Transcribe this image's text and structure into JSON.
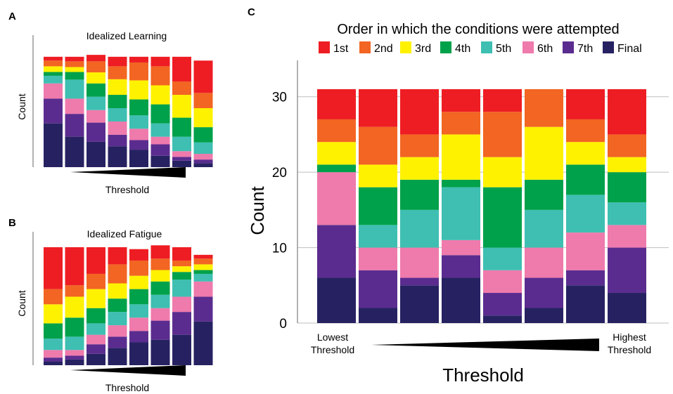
{
  "colors": {
    "1st": "#ee1d23",
    "2nd": "#f26522",
    "3rd": "#fff200",
    "4th": "#00a14b",
    "5th": "#3ebfb2",
    "6th": "#ef7aac",
    "7th": "#5b2c8f",
    "Final": "#262262"
  },
  "panels": {
    "A": {
      "letter": "A",
      "title": "Idealized Learning",
      "ylabel": "Count",
      "xlabel": "Threshold"
    },
    "B": {
      "letter": "B",
      "title": "Idealized Fatigue",
      "ylabel": "Count",
      "xlabel": "Threshold"
    },
    "C": {
      "letter": "C",
      "title": "Order in which the conditions were attempted",
      "ylabel": "Count",
      "xlabel": "Threshold",
      "low_label_1": "Lowest",
      "low_label_2": "Threshold",
      "high_label_1": "Highest",
      "high_label_2": "Threshold"
    }
  },
  "chart_data": [
    {
      "panel": "A",
      "type": "bar",
      "stacked": true,
      "title": "Idealized Learning",
      "xlabel": "Threshold",
      "ylabel": "Count",
      "ylim": [
        0,
        31
      ],
      "categories": [
        "1",
        "2",
        "3",
        "4",
        "5",
        "6",
        "7",
        "8"
      ],
      "series": [
        {
          "name": "Final",
          "values": [
            11.5,
            8,
            6.7,
            5.5,
            4.6,
            3,
            1.7,
            1
          ]
        },
        {
          "name": "7th",
          "values": [
            6.5,
            6,
            5,
            3,
            2.5,
            3,
            1,
            1
          ]
        },
        {
          "name": "6th",
          "values": [
            4,
            4,
            3.3,
            3.5,
            3,
            2,
            1.5,
            1.5
          ]
        },
        {
          "name": "5th",
          "values": [
            2,
            5,
            3.5,
            3.5,
            3.5,
            3.5,
            3.8,
            3
          ]
        },
        {
          "name": "4th",
          "values": [
            1,
            2,
            3.5,
            3.5,
            4.2,
            5,
            5,
            4
          ]
        },
        {
          "name": "3rd",
          "values": [
            1.5,
            1.3,
            2.9,
            4.1,
            5,
            5,
            6,
            5
          ]
        },
        {
          "name": "2nd",
          "values": [
            1.5,
            1.5,
            2.9,
            3.4,
            4.7,
            5,
            3.5,
            4
          ]
        },
        {
          "name": "1st",
          "values": [
            1,
            1.2,
            1.7,
            2.5,
            1.5,
            2.5,
            6.5,
            8.5
          ]
        }
      ]
    },
    {
      "panel": "B",
      "type": "bar",
      "stacked": true,
      "title": "Idealized Fatigue",
      "xlabel": "Threshold",
      "ylabel": "Count",
      "ylim": [
        0,
        31
      ],
      "categories": [
        "1",
        "2",
        "3",
        "4",
        "5",
        "6",
        "7",
        "8"
      ],
      "series": [
        {
          "name": "Final",
          "values": [
            1,
            1.5,
            3,
            4.5,
            6,
            6.7,
            8,
            11.5
          ]
        },
        {
          "name": "7th",
          "values": [
            1,
            1,
            2.5,
            3,
            3,
            5,
            6,
            6.5
          ]
        },
        {
          "name": "6th",
          "values": [
            2,
            1.5,
            2.5,
            3,
            3.5,
            3.3,
            4,
            4
          ]
        },
        {
          "name": "5th",
          "values": [
            3,
            3.5,
            3,
            3.5,
            3.5,
            3.5,
            4.5,
            2
          ]
        },
        {
          "name": "4th",
          "values": [
            4,
            5,
            4,
            3.5,
            4,
            3.5,
            2,
            1
          ]
        },
        {
          "name": "3rd",
          "values": [
            5,
            5.5,
            5,
            4,
            3.5,
            3,
            1.5,
            1.5
          ]
        },
        {
          "name": "2nd",
          "values": [
            4,
            3,
            4,
            5,
            4,
            3,
            1.5,
            1.5
          ]
        },
        {
          "name": "1st",
          "values": [
            11,
            10,
            7,
            4.5,
            3,
            3.5,
            3.5,
            1
          ]
        }
      ]
    },
    {
      "panel": "C",
      "type": "bar",
      "stacked": true,
      "title": "Order in which the conditions were attempted",
      "xlabel": "Threshold",
      "ylabel": "Count",
      "ylim": [
        0,
        35
      ],
      "yticks": [
        0,
        10,
        20,
        30
      ],
      "grid": true,
      "legend_position": "top",
      "legend": [
        "1st",
        "2nd",
        "3rd",
        "4th",
        "5th",
        "6th",
        "7th",
        "Final"
      ],
      "categories": [
        "1",
        "2",
        "3",
        "4",
        "5",
        "6",
        "7",
        "8"
      ],
      "series": [
        {
          "name": "Final",
          "values": [
            6,
            2,
            5,
            6,
            1,
            2,
            5,
            4
          ]
        },
        {
          "name": "7th",
          "values": [
            7,
            5,
            1,
            3,
            3,
            4,
            2,
            6
          ]
        },
        {
          "name": "6th",
          "values": [
            7,
            3,
            4,
            2,
            3,
            4,
            5,
            3
          ]
        },
        {
          "name": "5th",
          "values": [
            0,
            3,
            5,
            7,
            3,
            5,
            5,
            3
          ]
        },
        {
          "name": "4th",
          "values": [
            1,
            5,
            4,
            1,
            8,
            4,
            4,
            4
          ]
        },
        {
          "name": "3rd",
          "values": [
            3,
            3,
            3,
            6,
            4,
            7,
            3,
            2
          ]
        },
        {
          "name": "2nd",
          "values": [
            3,
            5,
            3,
            3,
            6,
            5,
            3,
            3
          ]
        },
        {
          "name": "1st",
          "values": [
            4,
            5,
            6,
            3,
            3,
            0,
            4,
            6
          ]
        }
      ]
    }
  ]
}
